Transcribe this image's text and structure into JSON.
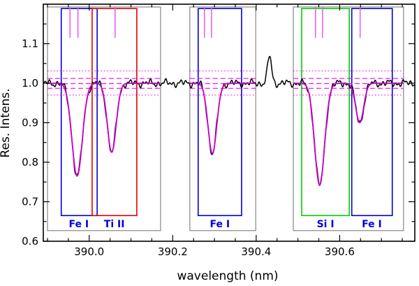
{
  "chart_data": {
    "type": "line",
    "title": "",
    "xlabel": "wavelength (nm)",
    "ylabel": "Res. Intens.",
    "xlim": [
      389.89,
      390.78
    ],
    "ylim": [
      0.6,
      1.2
    ],
    "xticks": [
      390.0,
      390.2,
      390.4,
      390.6
    ],
    "xtick_labels": [
      "390.0",
      "390.2",
      "390.4",
      "390.6"
    ],
    "x_minor_step": 0.05,
    "yticks": [
      0.6,
      0.7,
      0.8,
      0.9,
      1.0,
      1.1
    ],
    "ytick_labels": [
      "0.6",
      "0.7",
      "0.8",
      "0.9",
      "1.0",
      "1.1"
    ],
    "y_minor_step": 0.05,
    "grid": false,
    "legend": "none",
    "colors": {
      "spectrum": "#000000",
      "fit": "#cc00cc",
      "continuum": "#ff00ff",
      "marker": "#ee55ee",
      "segment_box": "#909090",
      "label": "#0000dd",
      "mask_blue": "#0000cc",
      "mask_red": "#dd0000",
      "mask_green": "#00cc00"
    },
    "absorption_lines": [
      {
        "species": "Fe I",
        "center": 389.971,
        "depth": 0.235,
        "sigma": 0.0125,
        "min_intensity": 0.765,
        "mask": {
          "xmin": 389.933,
          "xmax": 390.019,
          "color": "#0000cc"
        },
        "label_x": 389.975
      },
      {
        "species": "Ti II",
        "center": 390.054,
        "depth": 0.175,
        "sigma": 0.0105,
        "min_intensity": 0.825,
        "mask": {
          "xmin": 390.007,
          "xmax": 390.114,
          "color": "#dd0000"
        },
        "label_x": 390.06
      },
      {
        "species": "Fe I",
        "center": 390.295,
        "depth": 0.178,
        "sigma": 0.0105,
        "min_intensity": 0.822,
        "mask": {
          "xmin": 390.261,
          "xmax": 390.365,
          "color": "#0000cc"
        },
        "label_x": 390.313
      },
      {
        "species": "Si I",
        "center": 390.552,
        "depth": 0.258,
        "sigma": 0.012,
        "min_intensity": 0.742,
        "mask": {
          "xmin": 390.509,
          "xmax": 390.623,
          "color": "#00cc00"
        },
        "label_x": 390.566
      },
      {
        "species": "Fe I",
        "center": 390.648,
        "depth": 0.1,
        "sigma": 0.0095,
        "min_intensity": 0.9,
        "mask": {
          "xmin": 390.629,
          "xmax": 390.726,
          "color": "#0000cc"
        },
        "label_x": 390.677
      }
    ],
    "segments": [
      {
        "xmin": 389.9,
        "xmax": 390.171
      },
      {
        "xmin": 390.241,
        "xmax": 390.399
      },
      {
        "xmin": 390.489,
        "xmax": 390.753
      }
    ],
    "segment_box_v": [
      0.627,
      1.193
    ],
    "mask_box_v": [
      0.665,
      1.189
    ],
    "emission_feature": {
      "center": 390.432,
      "height": 0.068,
      "sigma": 0.0048
    },
    "line_markers": [
      389.954,
      389.973,
      390.062,
      390.276,
      390.293,
      390.542,
      390.559,
      390.649
    ],
    "marker_v_extent": [
      1.115,
      1.193
    ],
    "continuum_levels": {
      "dotted": [
        1.031,
        0.97
      ],
      "dashed": [
        1.012,
        0.999,
        0.987
      ]
    },
    "noise_components": [
      {
        "amp": 0.0045,
        "period": 0.041,
        "phase": 0.5
      },
      {
        "amp": 0.004,
        "period": 0.0173,
        "phase": 2.1
      },
      {
        "amp": 0.0035,
        "period": 0.0093,
        "phase": 4.2
      }
    ],
    "sample_step": 0.0012
  }
}
